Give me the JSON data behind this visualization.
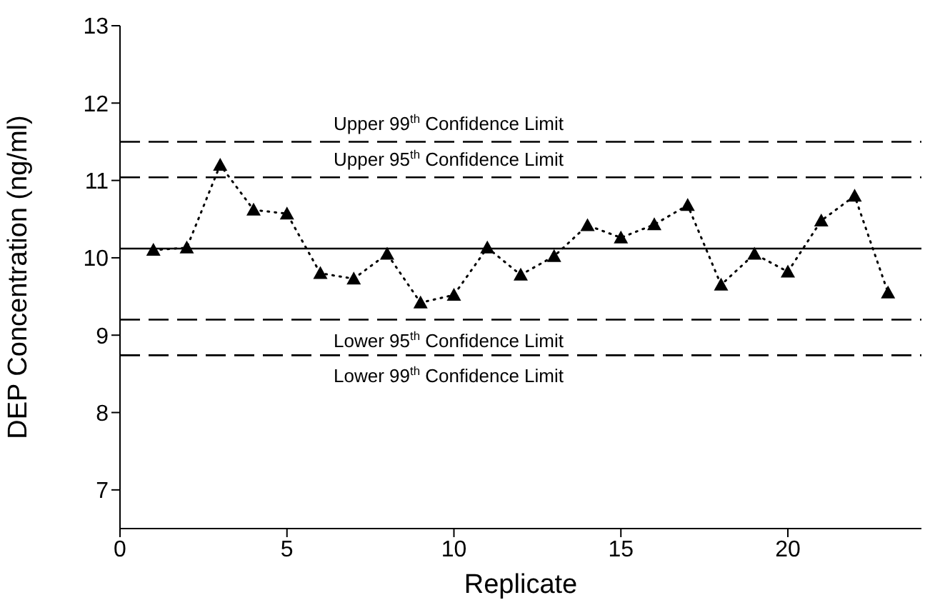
{
  "chart_data": {
    "type": "line",
    "xlabel": "Replicate",
    "ylabel": "DEP Concentration (ng/ml)",
    "x": [
      1,
      2,
      3,
      4,
      5,
      6,
      7,
      8,
      9,
      10,
      11,
      12,
      13,
      14,
      15,
      16,
      17,
      18,
      19,
      20,
      21,
      22,
      23
    ],
    "series": [
      {
        "color": "#000000",
        "values": [
          10.1,
          10.13,
          11.2,
          10.62,
          10.57,
          9.8,
          9.73,
          10.05,
          9.42,
          9.52,
          10.13,
          9.78,
          10.02,
          10.42,
          10.26,
          10.43,
          10.68,
          9.65,
          10.05,
          9.82,
          10.48,
          10.8,
          9.55
        ]
      }
    ],
    "marker": "triangle",
    "line_style": "dotted",
    "xlim": [
      0,
      24
    ],
    "xticks": [
      0,
      5,
      10,
      15,
      20
    ],
    "ylim": [
      6.5,
      13
    ],
    "yticks": [
      7,
      8,
      9,
      10,
      11,
      12,
      13
    ],
    "grid": false,
    "legend": false,
    "ref_lines": [
      {
        "axis": "y",
        "value": 11.5,
        "label": "Upper 99$^{th}$ Confidence Limit",
        "color": "#000000",
        "line_style": "dashed"
      },
      {
        "axis": "y",
        "value": 11.04,
        "label": "Upper 95$^{th}$ Confidence Limit",
        "color": "#000000",
        "line_style": "dashed"
      },
      {
        "axis": "y",
        "value": 10.12,
        "color": "#000000",
        "line_style": "solid"
      },
      {
        "axis": "y",
        "value": 9.2,
        "label": "Lower 95$^{th}$ Confidence Limit",
        "color": "#000000",
        "line_style": "dashed"
      },
      {
        "axis": "y",
        "value": 8.74,
        "label": "Lower 99$^{th}$ Confidence Limit",
        "color": "#000000",
        "line_style": "dashed"
      }
    ]
  }
}
